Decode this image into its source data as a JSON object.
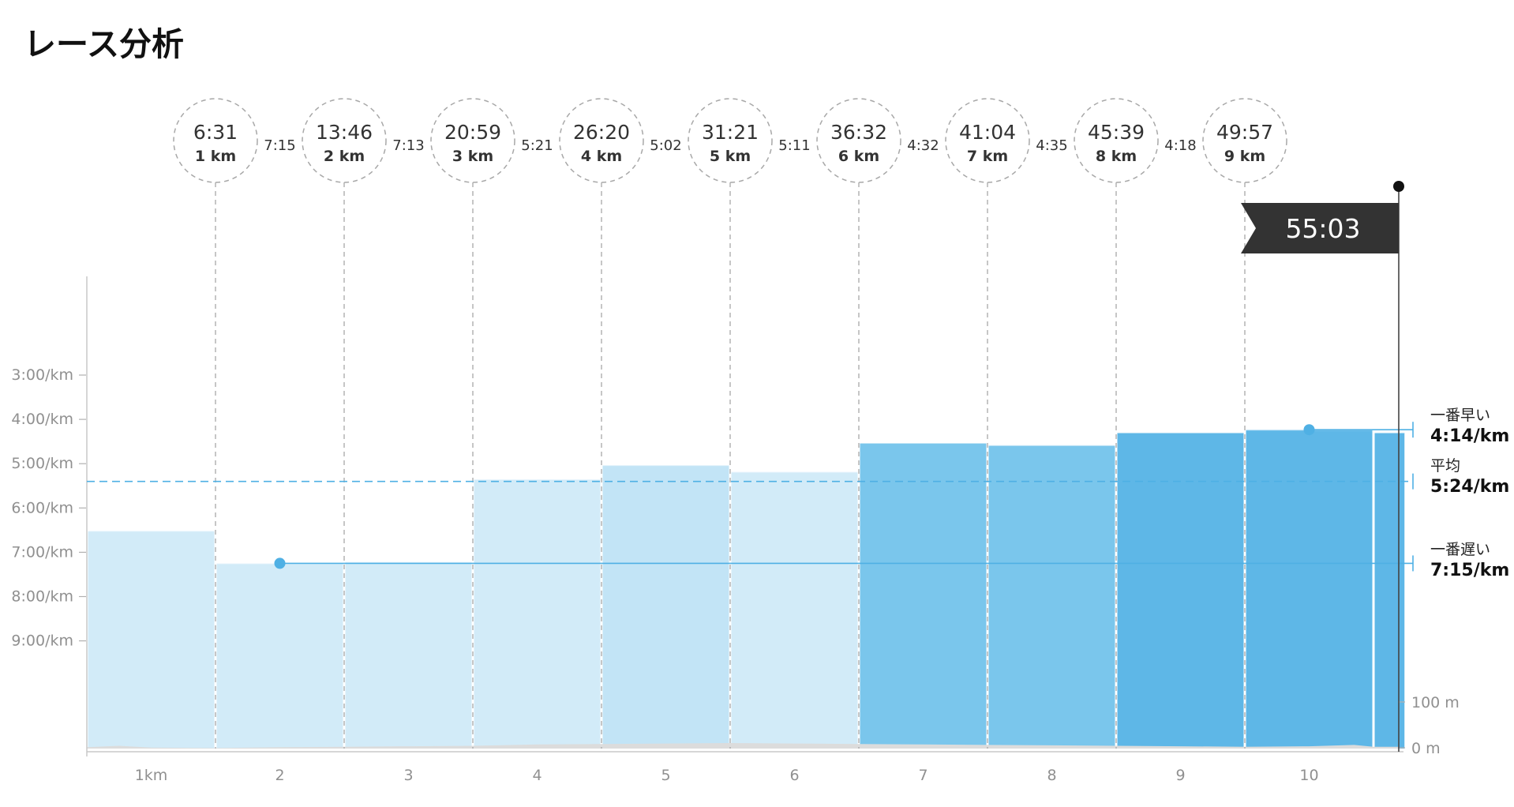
{
  "page": {
    "title": "レース分析"
  },
  "chart_data": {
    "type": "bar",
    "x_unit": "km",
    "categories": [
      "1km",
      "2",
      "3",
      "4",
      "5",
      "6",
      "7",
      "8",
      "9",
      "10"
    ],
    "pace_axis": {
      "ticks": [
        "3:00/km",
        "4:00/km",
        "5:00/km",
        "6:00/km",
        "7:00/km",
        "8:00/km",
        "9:00/km"
      ]
    },
    "elevation_axis": {
      "ticks": [
        "100 m",
        "0 m"
      ]
    },
    "splits": [
      {
        "km": 1,
        "pace": "6:31",
        "pace_sec": 391
      },
      {
        "km": 2,
        "pace": "7:15",
        "pace_sec": 435
      },
      {
        "km": 3,
        "pace": "7:13",
        "pace_sec": 433
      },
      {
        "km": 4,
        "pace": "5:21",
        "pace_sec": 321
      },
      {
        "km": 5,
        "pace": "5:02",
        "pace_sec": 302
      },
      {
        "km": 6,
        "pace": "5:11",
        "pace_sec": 311
      },
      {
        "km": 7,
        "pace": "4:32",
        "pace_sec": 272
      },
      {
        "km": 8,
        "pace": "4:35",
        "pace_sec": 275
      },
      {
        "km": 9,
        "pace": "4:18",
        "pace_sec": 258
      },
      {
        "km": 10,
        "pace": "4:14",
        "pace_sec": 254
      },
      {
        "km": 10.25,
        "pace": "4:18",
        "pace_sec": 258
      }
    ],
    "markers": [
      {
        "km": 1,
        "time": "6:31",
        "label": "1 km"
      },
      {
        "km": 2,
        "time": "13:46",
        "label": "2 km"
      },
      {
        "km": 3,
        "time": "20:59",
        "label": "3 km"
      },
      {
        "km": 4,
        "time": "26:20",
        "label": "4 km"
      },
      {
        "km": 5,
        "time": "31:21",
        "label": "5 km"
      },
      {
        "km": 6,
        "time": "36:32",
        "label": "6 km"
      },
      {
        "km": 7,
        "time": "41:04",
        "label": "7 km"
      },
      {
        "km": 8,
        "time": "45:39",
        "label": "8 km"
      },
      {
        "km": 9,
        "time": "49:57",
        "label": "9 km"
      }
    ],
    "segment_paces": [
      "7:15",
      "7:13",
      "5:21",
      "5:02",
      "5:11",
      "4:32",
      "4:35",
      "4:18"
    ],
    "finish": {
      "time": "55:03"
    },
    "fastest": {
      "label": "一番早い",
      "value": "4:14/km",
      "pace_sec": 254,
      "km": 10
    },
    "average": {
      "label": "平均",
      "value": "5:24/km",
      "pace_sec": 324
    },
    "slowest": {
      "label": "一番遅い",
      "value": "7:15/km",
      "pace_sec": 435,
      "km": 2
    },
    "elevation_profile_m": [
      [
        0.5,
        3
      ],
      [
        0.75,
        6
      ],
      [
        1.0,
        2
      ],
      [
        1.5,
        1
      ],
      [
        2.0,
        3
      ],
      [
        2.5,
        4
      ],
      [
        3.0,
        5
      ],
      [
        3.5,
        6
      ],
      [
        4.0,
        9
      ],
      [
        4.5,
        10
      ],
      [
        5.0,
        11
      ],
      [
        5.5,
        12
      ],
      [
        6.0,
        11
      ],
      [
        6.5,
        10
      ],
      [
        7.0,
        9
      ],
      [
        7.5,
        8
      ],
      [
        8.0,
        7
      ],
      [
        8.5,
        6
      ],
      [
        9.0,
        5
      ],
      [
        9.5,
        4
      ],
      [
        10.0,
        5
      ],
      [
        10.35,
        8
      ],
      [
        10.5,
        4
      ],
      [
        10.7,
        4
      ]
    ],
    "colors": {
      "bar_light": "#d2ebf8",
      "bar_mid": "#c2e4f6",
      "bar_blue": "#7ac6ec",
      "bar_dark": "#5eb7e7",
      "line": "#4fb0e4",
      "elevation": "#dcdcdc",
      "flag": "#333333"
    }
  }
}
